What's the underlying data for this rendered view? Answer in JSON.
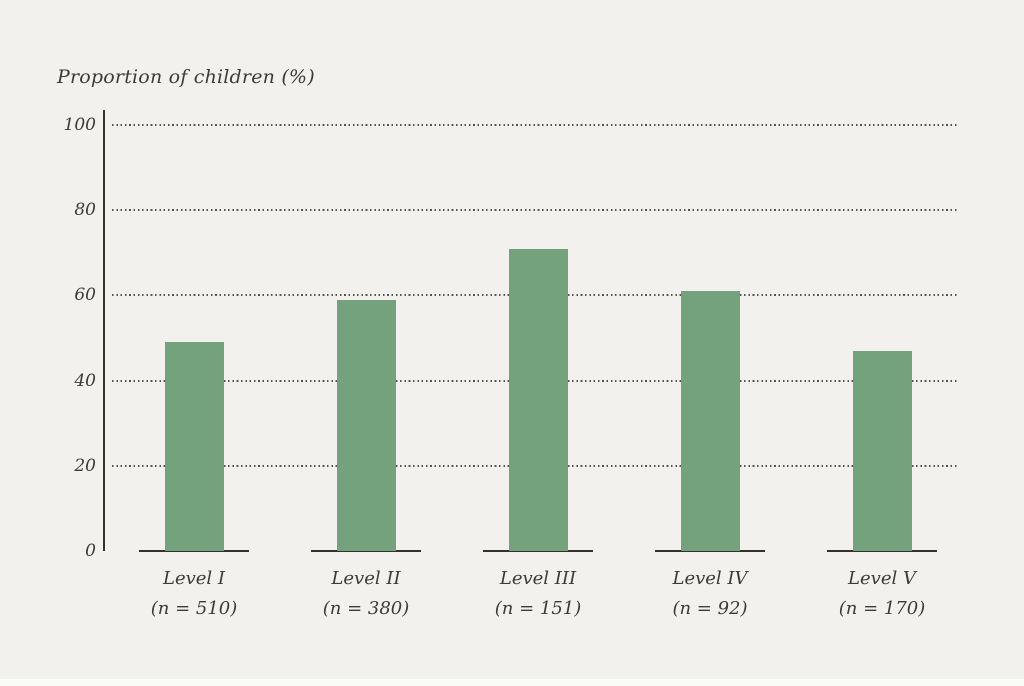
{
  "chart_data": {
    "type": "bar",
    "title": "Proportion of children (%)",
    "categories": [
      "Level I",
      "Level II",
      "Level III",
      "Level IV",
      "Level V"
    ],
    "category_sublabels": [
      "(n = 510)",
      "(n = 380)",
      "(n = 151)",
      "(n = 92)",
      "(n = 170)"
    ],
    "values": [
      49,
      59,
      71,
      61,
      47
    ],
    "ylabel": "Proportion of children (%)",
    "xlabel": "",
    "ylim": [
      0,
      100
    ],
    "yticks": [
      0,
      20,
      40,
      60,
      80,
      100
    ],
    "grid": "horizontal dotted lines at each y tick above 0",
    "legend": "none",
    "bar_color": "#74a27d",
    "background_color": "#f2f1ee",
    "axis_color": "#32312d",
    "text_color": "#3c3b37"
  }
}
